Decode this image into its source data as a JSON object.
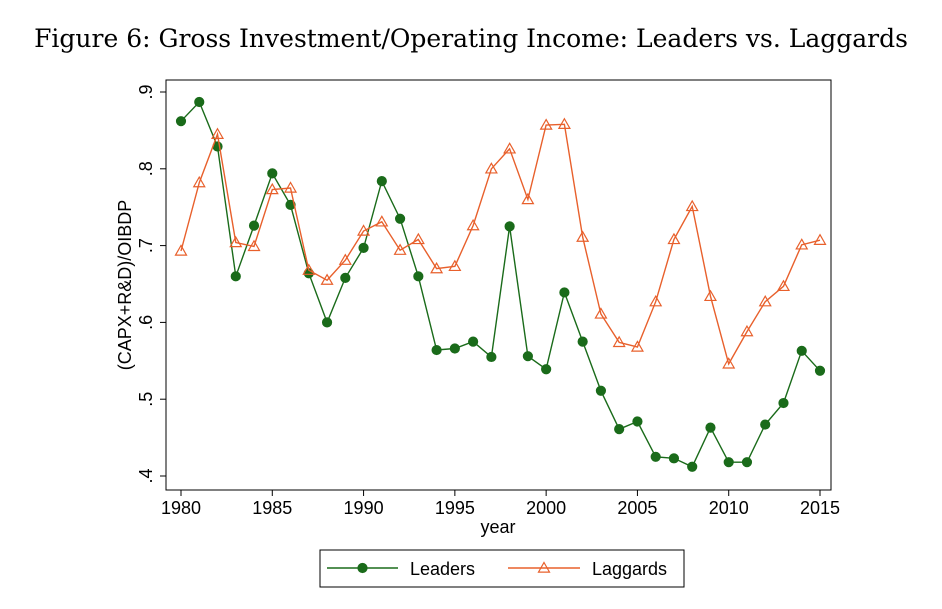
{
  "title": "Figure 6: Gross Investment/Operating Income: Leaders vs. Laggards",
  "chart_data": {
    "type": "line",
    "title": "Figure 6: Gross Investment/Operating Income: Leaders vs. Laggards",
    "xlabel": "year",
    "ylabel": "(CAPX+R&D)/OIBDP",
    "xlim": [
      1980,
      2015
    ],
    "ylim": [
      0.4,
      0.9
    ],
    "xticks": [
      1980,
      1985,
      1990,
      1995,
      2000,
      2005,
      2010,
      2015
    ],
    "xtick_labels": [
      "1980",
      "1985",
      "1990",
      "1995",
      "2000",
      "2005",
      "2010",
      "2015"
    ],
    "yticks": [
      0.4,
      0.5,
      0.6,
      0.7,
      0.8,
      0.9
    ],
    "ytick_labels": [
      ".4",
      ".5",
      ".6",
      ".7",
      ".8",
      ".9"
    ],
    "grid": false,
    "legend_position": "bottom",
    "x": [
      1980,
      1981,
      1982,
      1983,
      1984,
      1985,
      1986,
      1987,
      1988,
      1989,
      1990,
      1991,
      1992,
      1993,
      1994,
      1995,
      1996,
      1997,
      1998,
      1999,
      2000,
      2001,
      2002,
      2003,
      2004,
      2005,
      2006,
      2007,
      2008,
      2009,
      2010,
      2011,
      2012,
      2013,
      2014,
      2015
    ],
    "series": [
      {
        "name": "Leaders",
        "color": "#1a6b1a",
        "marker": "circle",
        "values": [
          0.862,
          0.887,
          0.829,
          0.66,
          0.726,
          0.794,
          0.753,
          0.664,
          0.6,
          0.658,
          0.697,
          0.784,
          0.735,
          0.66,
          0.564,
          0.566,
          0.575,
          0.555,
          0.725,
          0.556,
          0.539,
          0.639,
          0.575,
          0.511,
          0.461,
          0.471,
          0.425,
          0.423,
          0.412,
          0.463,
          0.418,
          0.418,
          0.467,
          0.495,
          0.563,
          0.537
        ]
      },
      {
        "name": "Laggards",
        "color": "#e8602c",
        "marker": "triangle",
        "values": [
          0.693,
          0.782,
          0.845,
          0.704,
          0.699,
          0.773,
          0.775,
          0.668,
          0.655,
          0.681,
          0.719,
          0.731,
          0.694,
          0.708,
          0.67,
          0.673,
          0.726,
          0.8,
          0.826,
          0.76,
          0.857,
          0.858,
          0.711,
          0.611,
          0.574,
          0.568,
          0.627,
          0.708,
          0.751,
          0.634,
          0.546,
          0.588,
          0.627,
          0.647,
          0.701,
          0.707
        ]
      }
    ]
  }
}
